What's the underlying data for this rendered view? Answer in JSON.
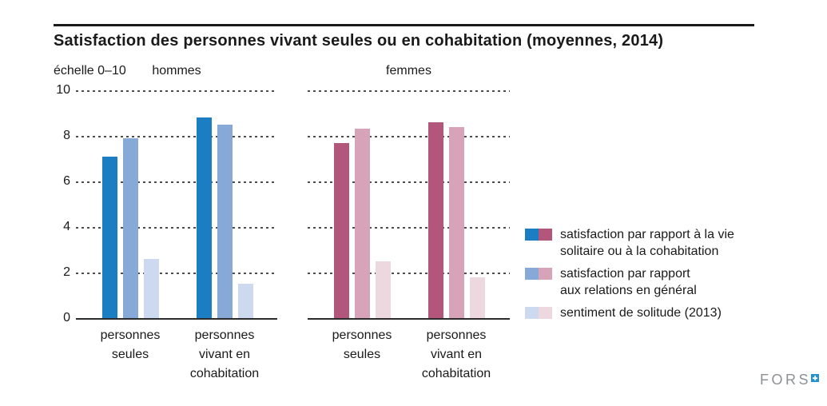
{
  "title": "Satisfaction des personnes vivant seules ou en cohabitation (moyennes, 2014)",
  "branding": {
    "logo_text": "FORS"
  },
  "colors": {
    "blue_dark": "#1b7dc2",
    "blue_medium": "#86a9d7",
    "blue_light": "#cdd9ee",
    "pink_dark": "#b2567b",
    "pink_medium": "#d6a3b8",
    "pink_light": "#eed8e0",
    "grid": "#4d4d4d",
    "baseline": "#2b2b2b",
    "logo_gray": "#8d9094",
    "logo_blue": "#2191d0"
  },
  "chart_data": {
    "type": "bar",
    "title": "Satisfaction des personnes vivant seules ou en cohabitation (moyennes, 2014)",
    "scale_label": "échelle 0–10",
    "ylim": [
      0,
      10
    ],
    "yticks": [
      10,
      8,
      6,
      4,
      2,
      0
    ],
    "grid": "dotted horizontal lines at 2,4,6,8,10; solid baseline at 0",
    "legend_position": "right",
    "panels": [
      {
        "label": "hommes",
        "categories": [
          "personnes\nseules",
          "personnes\nvivant en\ncohabitation"
        ],
        "series": [
          {
            "name": "satisfaction par rapport à la vie solitaire ou à la cohabitation",
            "color": "#1b7dc2",
            "values": [
              7.1,
              8.8
            ]
          },
          {
            "name": "satisfaction par rapport aux relations en général",
            "color": "#86a9d7",
            "values": [
              7.9,
              8.5
            ]
          },
          {
            "name": "sentiment de solitude (2013)",
            "color": "#cdd9ee",
            "values": [
              2.6,
              1.5
            ]
          }
        ]
      },
      {
        "label": "femmes",
        "categories": [
          "personnes\nseules",
          "personnes\nvivant en\ncohabitation"
        ],
        "series": [
          {
            "name": "satisfaction par rapport à la vie solitaire ou à la cohabitation",
            "color": "#b2567b",
            "values": [
              7.7,
              8.6
            ]
          },
          {
            "name": "satisfaction par rapport aux relations en général",
            "color": "#d6a3b8",
            "values": [
              8.3,
              8.4
            ]
          },
          {
            "name": "sentiment de solitude (2013)",
            "color": "#eed8e0",
            "values": [
              2.5,
              1.8
            ]
          }
        ]
      }
    ],
    "legend": [
      {
        "label": "satisfaction par rapport à la vie\nsolitaire ou à la cohabitation",
        "colors": [
          "#1b7dc2",
          "#b2567b"
        ]
      },
      {
        "label": "satisfaction par rapport\naux relations en général",
        "colors": [
          "#86a9d7",
          "#d6a3b8"
        ]
      },
      {
        "label": "sentiment de solitude (2013)",
        "colors": [
          "#cdd9ee",
          "#eed8e0"
        ]
      }
    ]
  }
}
